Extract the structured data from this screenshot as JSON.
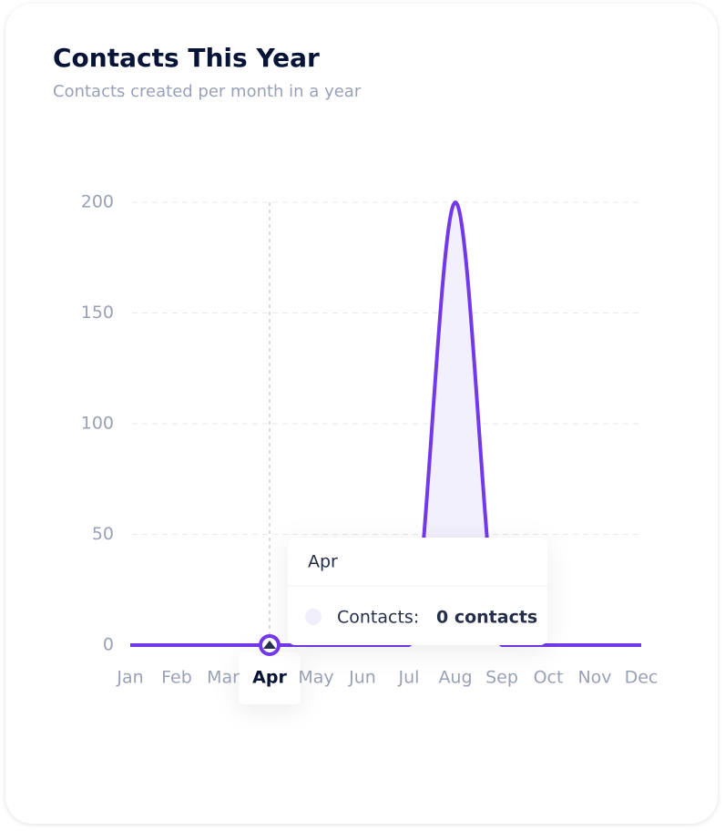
{
  "chart_data": {
    "type": "area",
    "title": "Contacts This Year",
    "subtitle": "Contacts created per month in a year",
    "categories": [
      "Jan",
      "Feb",
      "Mar",
      "Apr",
      "May",
      "Jun",
      "Jul",
      "Aug",
      "Sep",
      "Oct",
      "Nov",
      "Dec"
    ],
    "series": [
      {
        "name": "Contacts",
        "color": "#7239ea",
        "values": [
          0,
          0,
          0,
          0,
          0,
          0,
          0,
          200,
          0,
          0,
          0,
          0
        ]
      }
    ],
    "ylim": [
      0,
      200
    ],
    "yticks": [
      0,
      50,
      100,
      150,
      200
    ],
    "grid": true,
    "tooltip": {
      "series_label": "Contacts:",
      "value_label": "0 contacts"
    }
  }
}
